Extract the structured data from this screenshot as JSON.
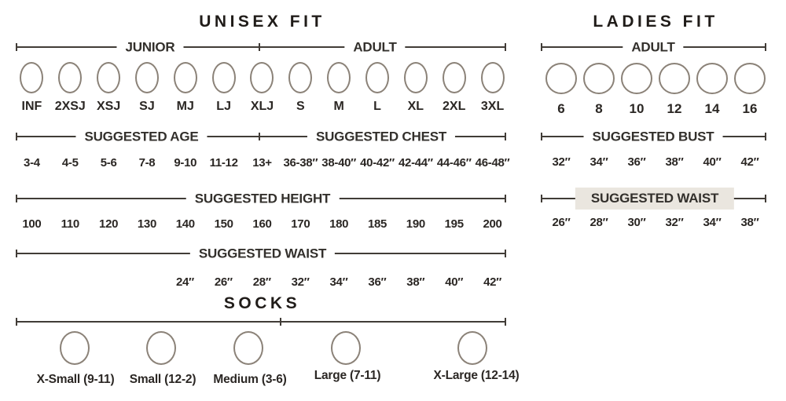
{
  "colors": {
    "line": "#413c37",
    "circle_stroke": "#8b8278",
    "highlight": "#eae6df",
    "text": "#2b2724"
  },
  "unisex": {
    "title": "UNISEX FIT",
    "junior_label": "JUNIOR",
    "adult_label": "ADULT",
    "sizes": [
      "INF",
      "2XSJ",
      "XSJ",
      "SJ",
      "MJ",
      "LJ",
      "XLJ",
      "S",
      "M",
      "L",
      "XL",
      "2XL",
      "3XL"
    ],
    "age_label": "SUGGESTED AGE",
    "age_values": [
      "3-4",
      "4-5",
      "5-6",
      "7-8",
      "9-10",
      "11-12",
      "13+"
    ],
    "chest_label": "SUGGESTED CHEST",
    "chest_values": [
      "36-38″",
      "38-40″",
      "40-42″",
      "42-44″",
      "44-46″",
      "46-48″"
    ],
    "height_label": "SUGGESTED HEIGHT",
    "height_values": [
      "100",
      "110",
      "120",
      "130",
      "140",
      "150",
      "160",
      "170",
      "180",
      "185",
      "190",
      "195",
      "200"
    ],
    "waist_label": "SUGGESTED WAIST",
    "waist_values": [
      "24″",
      "26″",
      "28″",
      "32″",
      "34″",
      "36″",
      "38″",
      "40″",
      "42″"
    ]
  },
  "socks": {
    "title": "SOCKS",
    "sizes": [
      "X-Small (9-11)",
      "Small (12-2)",
      "Medium (3-6)",
      "Large (7-11)",
      "X-Large (12-14)"
    ]
  },
  "ladies": {
    "title": "LADIES FIT",
    "adult_label": "ADULT",
    "sizes": [
      "6",
      "8",
      "10",
      "12",
      "14",
      "16"
    ],
    "bust_label": "SUGGESTED BUST",
    "bust_values": [
      "32″",
      "34″",
      "36″",
      "38″",
      "40″",
      "42″"
    ],
    "waist_label": "SUGGESTED WAIST",
    "waist_values": [
      "26″",
      "28″",
      "30″",
      "32″",
      "34″",
      "38″"
    ]
  }
}
